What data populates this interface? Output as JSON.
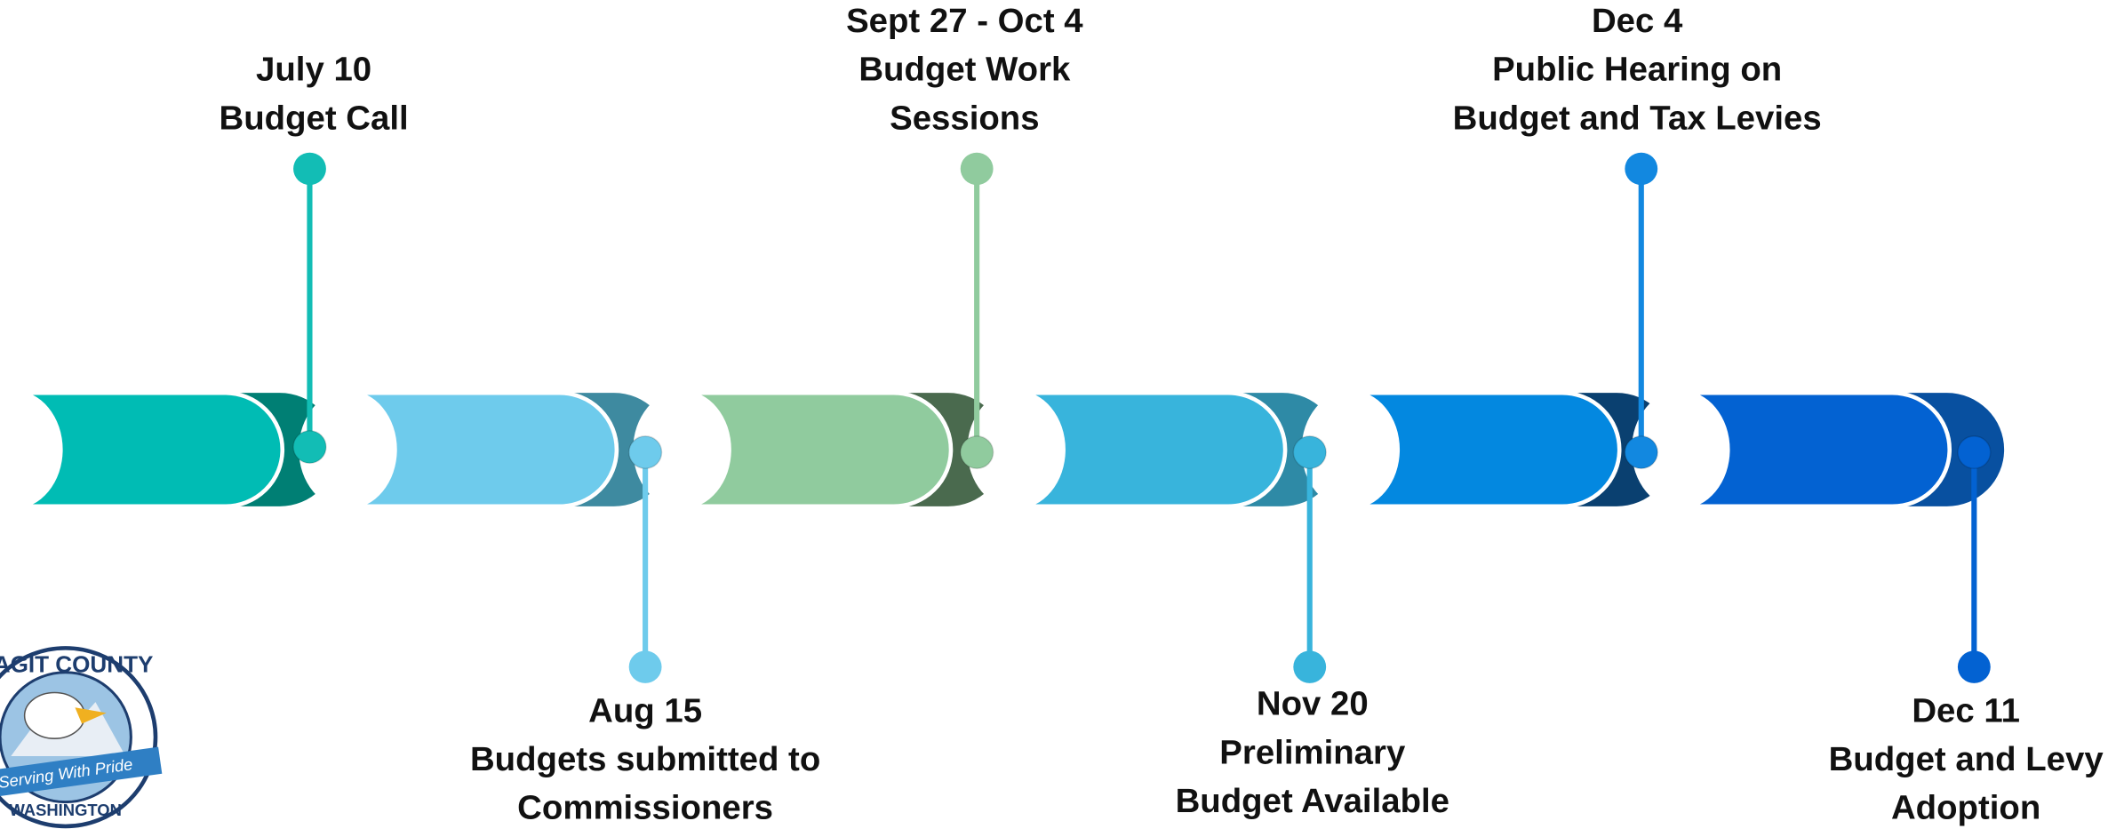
{
  "events": [
    {
      "date": "July 10",
      "lines": [
        "Budget Call"
      ]
    },
    {
      "date": "Aug 15",
      "lines": [
        "Budgets submitted to",
        "Commissioners"
      ]
    },
    {
      "date": "Sept 27 - Oct 4",
      "lines": [
        "Budget Work",
        "Sessions"
      ]
    },
    {
      "date": "Nov 20",
      "lines": [
        "Preliminary",
        "Budget Available"
      ]
    },
    {
      "date": "Dec 4",
      "lines": [
        "Public Hearing on",
        "Budget and Tax Levies"
      ]
    },
    {
      "date": "Dec 11",
      "lines": [
        "Budget and Levy",
        "Adoption"
      ]
    }
  ],
  "logo": {
    "top": "SKAGIT COUNTY",
    "banner": "Serving With Pride",
    "bottom": "WASHINGTON"
  }
}
